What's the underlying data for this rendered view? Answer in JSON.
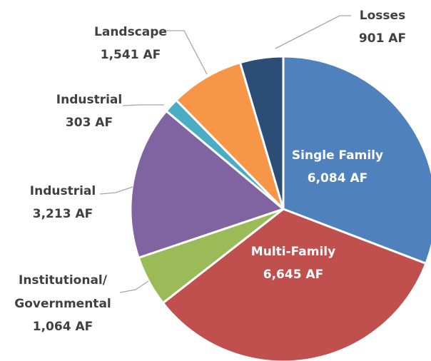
{
  "chart_data": {
    "type": "pie",
    "categories": [
      "Single Family",
      "Multi-Family",
      "Institutional/ Governmental",
      "Industrial",
      "Industrial",
      "Landscape",
      "Losses"
    ],
    "values": [
      6084,
      6645,
      1064,
      3213,
      303,
      1541,
      901
    ],
    "value_labels": [
      "6,084 AF",
      "6,645 AF",
      "1,064 AF",
      "3,213 AF",
      "303 AF",
      "1,541 AF",
      "901 AF"
    ],
    "colors": [
      "#4f81bd",
      "#c0504d",
      "#9bbb59",
      "#8064a2",
      "#4bacc6",
      "#f79646",
      "#2c4d75"
    ]
  }
}
